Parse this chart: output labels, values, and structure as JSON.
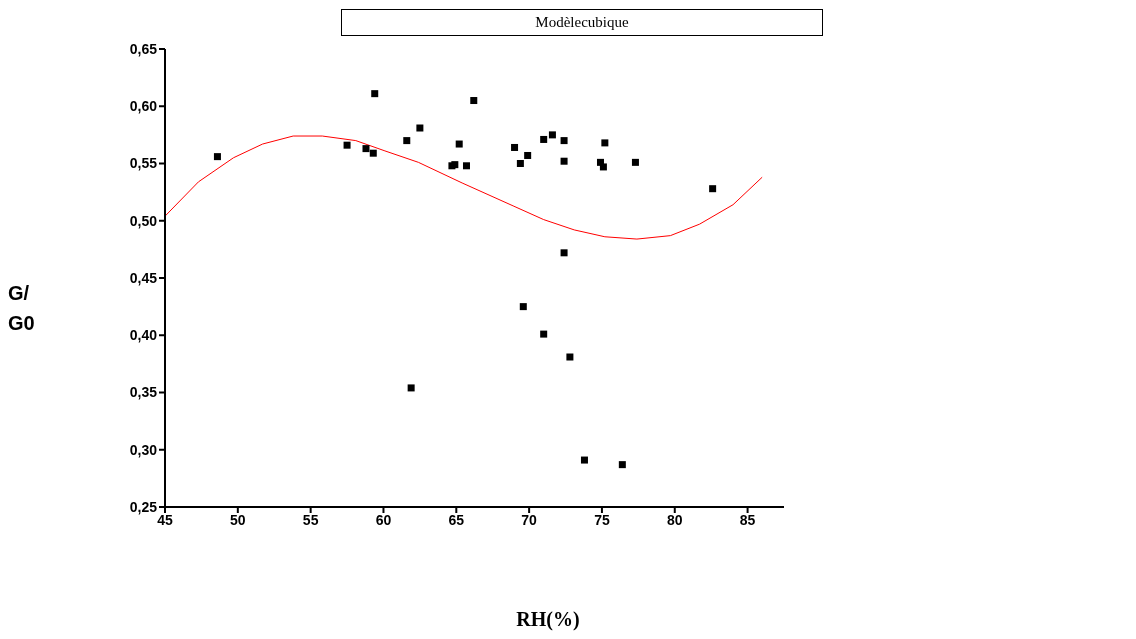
{
  "chart_data": {
    "type": "scatter",
    "title": "Modèlecubique",
    "xlabel": "RH(%)",
    "ylabel": "G/ G0",
    "xlim": [
      45,
      87.5
    ],
    "xticks": [
      45,
      50,
      55,
      60,
      65,
      70,
      75,
      80,
      85
    ],
    "ylim": [
      0.25,
      0.65
    ],
    "yticks": [
      {
        "value": 0.25,
        "label": "0,25"
      },
      {
        "value": 0.3,
        "label": "0,30"
      },
      {
        "value": 0.35,
        "label": "0,35"
      },
      {
        "value": 0.4,
        "label": "0,40"
      },
      {
        "value": 0.45,
        "label": "0,45"
      },
      {
        "value": 0.5,
        "label": "0,50"
      },
      {
        "value": 0.55,
        "label": "0,55"
      },
      {
        "value": 0.6,
        "label": "0,60"
      },
      {
        "value": 0.65,
        "label": "0,65"
      }
    ],
    "grid": false,
    "legend": false,
    "marker": "square",
    "series": [
      {
        "color": "#000000",
        "x": [
          48.6,
          57.5,
          58.8,
          59.3,
          59.4,
          61.6,
          61.9,
          62.5,
          64.7,
          64.9,
          65.2,
          65.7,
          66.2,
          69.0,
          69.4,
          69.6,
          69.9,
          71.0,
          71.0,
          71.6,
          72.4,
          72.4,
          72.4,
          72.8,
          73.8,
          74.9,
          75.1,
          75.2,
          76.4,
          77.3,
          82.6
        ],
        "values": [
          0.556,
          0.566,
          0.563,
          0.559,
          0.611,
          0.57,
          0.354,
          0.581,
          0.548,
          0.549,
          0.567,
          0.548,
          0.605,
          0.564,
          0.55,
          0.425,
          0.557,
          0.401,
          0.571,
          0.575,
          0.57,
          0.552,
          0.472,
          0.381,
          0.291,
          0.551,
          0.547,
          0.568,
          0.287,
          0.551,
          0.528
        ]
      },
      {
        "type": "line",
        "color": "#ff0000",
        "marker": "none",
        "line_style": "solid",
        "x": [
          45.0,
          47.3,
          49.7,
          51.7,
          53.8,
          55.8,
          58.1,
          60.1,
          62.4,
          65.4,
          68.9,
          71.0,
          73.1,
          75.2,
          77.4,
          79.7,
          81.7,
          84.0,
          86.0
        ],
        "values": [
          0.504,
          0.534,
          0.555,
          0.567,
          0.574,
          0.574,
          0.57,
          0.561,
          0.551,
          0.533,
          0.513,
          0.501,
          0.492,
          0.486,
          0.484,
          0.487,
          0.497,
          0.514,
          0.538
        ]
      }
    ]
  }
}
